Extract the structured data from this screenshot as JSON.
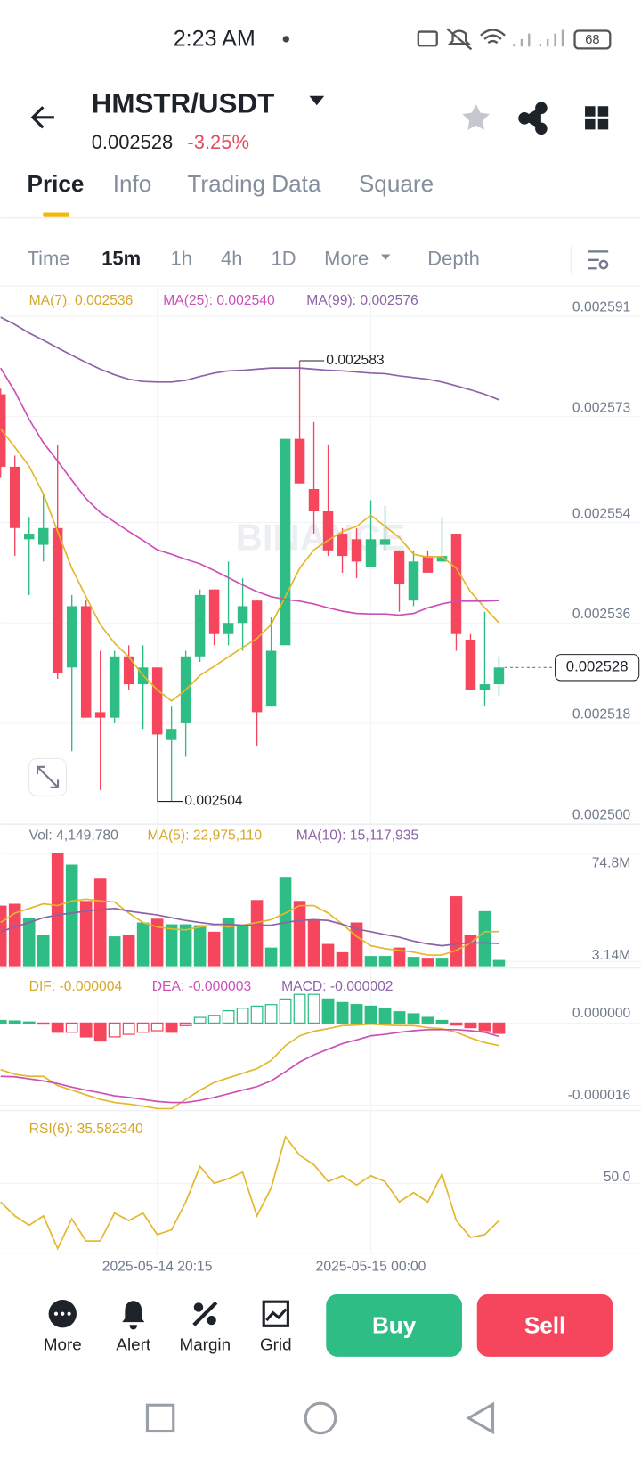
{
  "status_bar": {
    "time": "2:23 AM",
    "battery": "68"
  },
  "header": {
    "pair": "HMSTR/USDT",
    "price": "0.002528",
    "change": "-3.25%"
  },
  "tabs": [
    "Price",
    "Info",
    "Trading Data",
    "Square"
  ],
  "intervals": [
    "Time",
    "15m",
    "1h",
    "4h",
    "1D",
    "More",
    "Depth"
  ],
  "chart": {
    "type": "candlestick",
    "watermark": "BINANCE",
    "up_color": "#2ebd85",
    "down_color": "#f6465d",
    "grid": true,
    "xticks": [
      {
        "value": 11,
        "label": "2025-05-14 20:15"
      },
      {
        "value": 26,
        "label": "2025-05-15 00:00"
      }
    ],
    "price": {
      "legend": [
        "MA(7): 0.002536",
        "MA(25): 0.002540",
        "MA(99): 0.002576"
      ],
      "ylim": [
        0.0025,
        0.0025959
      ],
      "yticks": [
        0.002591,
        0.002573,
        0.002554,
        0.002536,
        0.002518,
        {
          "value": 0.0025,
          "label": "0.002500"
        }
      ],
      "candles": [
        [
          0.002577,
          0.002578,
          0.002562,
          0.002564
        ],
        [
          0.002564,
          0.002566,
          0.002548,
          0.002553
        ],
        [
          0.002551,
          0.002555,
          0.002541,
          0.002552
        ],
        [
          0.00255,
          0.002559,
          0.002547,
          0.002553
        ],
        [
          0.002553,
          0.002568,
          0.002526,
          0.002527
        ],
        [
          0.002528,
          0.002541,
          0.002513,
          0.002539
        ],
        [
          0.002539,
          0.00254,
          0.002519,
          0.002519
        ],
        [
          0.00252,
          0.002531,
          0.002506,
          0.002519
        ],
        [
          0.002519,
          0.002531,
          0.002518,
          0.00253
        ],
        [
          0.00253,
          0.002532,
          0.002524,
          0.002525
        ],
        [
          0.002525,
          0.002532,
          0.002517,
          0.002528
        ],
        [
          0.002528,
          0.002528,
          0.002504,
          0.002516
        ],
        [
          0.002515,
          0.002521,
          0.002504,
          0.002517
        ],
        [
          0.002518,
          0.002531,
          0.002512,
          0.00253
        ],
        [
          0.00253,
          0.002542,
          0.002529,
          0.002541
        ],
        [
          0.002542,
          0.002542,
          0.002532,
          0.002534
        ],
        [
          0.002534,
          0.002547,
          0.002532,
          0.002536
        ],
        [
          0.002536,
          0.002544,
          0.002531,
          0.002539
        ],
        [
          0.00254,
          0.00254,
          0.002514,
          0.00252
        ],
        [
          0.002521,
          0.002537,
          0.002521,
          0.002531
        ],
        [
          0.002532,
          0.002569,
          0.002532,
          0.002569
        ],
        [
          0.002569,
          0.002583,
          0.002561,
          0.002561
        ],
        [
          0.00256,
          0.002572,
          0.002552,
          0.002556
        ],
        [
          0.002556,
          0.002568,
          0.002548,
          0.002549
        ],
        [
          0.002552,
          0.002553,
          0.002545,
          0.002548
        ],
        [
          0.002551,
          0.002553,
          0.002544,
          0.002547
        ],
        [
          0.002546,
          0.002558,
          0.002546,
          0.002551
        ],
        [
          0.00255,
          0.002557,
          0.002549,
          0.002551
        ],
        [
          0.002549,
          0.002549,
          0.002538,
          0.002543
        ],
        [
          0.00254,
          0.002549,
          0.002539,
          0.002547
        ],
        [
          0.002548,
          0.002549,
          0.002545,
          0.002545
        ],
        [
          0.002547,
          0.002555,
          0.002547,
          0.002548
        ],
        [
          0.002552,
          0.002552,
          0.002531,
          0.002534
        ],
        [
          0.002533,
          0.002534,
          0.002524,
          0.002524
        ],
        [
          0.002524,
          0.002538,
          0.002521,
          0.002525
        ],
        [
          0.002525,
          0.00253,
          0.002523,
          0.002528
        ]
      ],
      "series": [
        {
          "color": "#e3b72b",
          "values": [
            0.0025708,
            0.0025675,
            0.0025641,
            0.0025591,
            0.0025524,
            0.0025458,
            0.0025407,
            0.0025357,
            0.0025324,
            0.0025299,
            0.0025266,
            0.002524,
            0.002522,
            0.002524,
            0.0025266,
            0.0025282,
            0.0025299,
            0.0025316,
            0.0025332,
            0.0025357,
            0.0025407,
            0.0025458,
            0.0025491,
            0.0025508,
            0.0025524,
            0.0025533,
            0.0025553,
            0.0025533,
            0.0025513,
            0.0025483,
            0.0025478,
            0.0025479,
            0.0025458,
            0.0025416,
            0.0025387,
            0.002536
          ]
        },
        {
          "color": "#cc4fb8",
          "values": [
            0.0025817,
            0.0025775,
            0.0025725,
            0.0025683,
            0.002565,
            0.0025616,
            0.0025583,
            0.0025558,
            0.0025541,
            0.0025524,
            0.0025508,
            0.0025491,
            0.0025483,
            0.0025474,
            0.0025466,
            0.0025454,
            0.0025441,
            0.0025428,
            0.0025416,
            0.0025407,
            0.0025402,
            0.0025399,
            0.0025394,
            0.0025387,
            0.0025381,
            0.0025377,
            0.0025376,
            0.0025376,
            0.0025374,
            0.0025377,
            0.0025387,
            0.0025394,
            0.0025399,
            0.0025399,
            0.0025399,
            0.00254
          ]
        },
        {
          "color": "#8c62a8",
          "values": [
            0.0025908,
            0.0025895,
            0.002588,
            0.0025867,
            0.0025853,
            0.002584,
            0.0025827,
            0.0025815,
            0.0025805,
            0.0025797,
            0.0025793,
            0.0025792,
            0.0025792,
            0.0025795,
            0.0025802,
            0.0025808,
            0.0025812,
            0.0025813,
            0.0025815,
            0.0025817,
            0.0025817,
            0.0025817,
            0.0025815,
            0.0025813,
            0.0025812,
            0.002581,
            0.0025808,
            0.0025807,
            0.0025803,
            0.00258,
            0.0025797,
            0.0025792,
            0.0025785,
            0.0025778,
            0.002577,
            0.002576
          ]
        }
      ]
    },
    "volume": {
      "legend": [
        "Vol: 4,149,780",
        "MA(5): 22,975,110",
        "MA(10): 15,117,935"
      ],
      "ylim": [
        0,
        90800000
      ],
      "yticks": [
        {
          "value": 74800000,
          "label": "74.8M"
        },
        {
          "value": 3140000,
          "label": "3.14M"
        }
      ],
      "values": [
        40200000,
        41400000,
        32100000,
        21000000,
        74800000,
        67400000,
        43300000,
        58100000,
        19800000,
        21000000,
        29000000,
        31500000,
        27800000,
        27800000,
        27200000,
        22900000,
        32100000,
        27200000,
        43900000,
        12400000,
        58700000,
        43300000,
        30900000,
        14800000,
        9300000,
        29000000,
        6800000,
        6800000,
        12400000,
        6200000,
        5600000,
        5600000,
        46400000,
        21000000,
        36500000,
        4149780
      ],
      "series": [
        {
          "color": "#e3b72b",
          "values": [
            29000000,
            35200000,
            38300000,
            41400000,
            40200000,
            43300000,
            44500000,
            43300000,
            42600000,
            35200000,
            29000000,
            26000000,
            24700000,
            24100000,
            26000000,
            27200000,
            26000000,
            27200000,
            29000000,
            30900000,
            35200000,
            40200000,
            40200000,
            35200000,
            27800000,
            19800000,
            13600000,
            11700000,
            10500000,
            9300000,
            7400000,
            7400000,
            10500000,
            15500000,
            22900000,
            22975110
          ]
        },
        {
          "color": "#8c62a8",
          "values": [
            22900000,
            26000000,
            29000000,
            32100000,
            34000000,
            35200000,
            36500000,
            37700000,
            38300000,
            36500000,
            35200000,
            34000000,
            32100000,
            30300000,
            29000000,
            27800000,
            27800000,
            27200000,
            27200000,
            27200000,
            29000000,
            30300000,
            30900000,
            30300000,
            27800000,
            24700000,
            22900000,
            21000000,
            19200000,
            16700000,
            14800000,
            13600000,
            14800000,
            15500000,
            15500000,
            15117935
          ]
        }
      ]
    },
    "macd": {
      "legend": [
        "DIF: -0.000004",
        "DEA: -0.000003",
        "MACD: -0.000002"
      ],
      "ylim": [
        -1.71e-05,
        1e-05
      ],
      "yticks": [
        {
          "value": 0,
          "label": "0.000000"
        },
        -1.6e-05
      ],
      "values": [
        5e-07,
        4e-07,
        2e-07,
        -2e-07,
        -1.8e-06,
        -1.8e-06,
        -2.7e-06,
        -3.5e-06,
        -2.7e-06,
        -2.2e-06,
        -1.8e-06,
        -1.5e-06,
        -1.8e-06,
        -5e-07,
        1.1e-06,
        1.5e-06,
        2.4e-06,
        2.9e-06,
        3.3e-06,
        3.6e-06,
        4.7e-06,
        5.6e-06,
        5.6e-06,
        4.7e-06,
        4e-06,
        3.6e-06,
        3.3e-06,
        2.9e-06,
        2.2e-06,
        1.8e-06,
        1.1e-06,
        5e-07,
        -4e-07,
        -9e-07,
        -1.5e-06,
        -2e-06
      ],
      "series": [
        {
          "color": "#e3b72b",
          "values": [
            -9.1e-06,
            -1e-05,
            -1.04e-05,
            -1.04e-05,
            -1.22e-05,
            -1.31e-05,
            -1.4e-05,
            -1.49e-05,
            -1.55e-05,
            -1.58e-05,
            -1.62e-05,
            -1.67e-05,
            -1.67e-05,
            -1.49e-05,
            -1.31e-05,
            -1.16e-05,
            -1.07e-05,
            -9.8e-06,
            -8.9e-06,
            -7.3e-06,
            -4.4e-06,
            -2.5e-06,
            -1.6e-06,
            -1.1e-06,
            -5e-07,
            -4e-07,
            -2e-07,
            -4e-07,
            -5e-07,
            -5e-07,
            -9e-07,
            -1.1e-06,
            -1.8e-06,
            -2.9e-06,
            -3.8e-06,
            -4.4e-06
          ]
        },
        {
          "color": "#cc4fb8",
          "values": [
            -1.04e-05,
            -1.05e-05,
            -1.09e-05,
            -1.13e-05,
            -1.18e-05,
            -1.25e-05,
            -1.31e-05,
            -1.36e-05,
            -1.42e-05,
            -1.45e-05,
            -1.49e-05,
            -1.53e-05,
            -1.55e-05,
            -1.55e-05,
            -1.51e-05,
            -1.45e-05,
            -1.38e-05,
            -1.31e-05,
            -1.24e-05,
            -1.13e-05,
            -9.5e-06,
            -7.6e-06,
            -6.2e-06,
            -5.1e-06,
            -4e-06,
            -3.3e-06,
            -2.5e-06,
            -2.2e-06,
            -1.8e-06,
            -1.5e-06,
            -1.3e-06,
            -1.3e-06,
            -1.3e-06,
            -1.5e-06,
            -1.8e-06,
            -2.6e-06
          ]
        }
      ]
    },
    "rsi": {
      "legend": [
        "RSI(6): 35.582340"
      ],
      "ylim": [
        23,
        77
      ],
      "yticks": [
        {
          "value": 50,
          "label": "50.0"
        }
      ],
      "series": [
        {
          "color": "#e3b72b",
          "values": [
            42.8,
            37.4,
            33.8,
            37.4,
            24.8,
            36.3,
            27.7,
            27.7,
            38.5,
            35.6,
            38.5,
            30.2,
            32,
            42.8,
            56.5,
            50,
            51.8,
            54.3,
            37.4,
            48.2,
            68,
            60.8,
            57.2,
            50.7,
            52.9,
            49.3,
            52.9,
            50.7,
            42.8,
            46.4,
            42.8,
            53.6,
            35.6,
            29.1,
            30.2,
            35.58234
          ]
        }
      ]
    }
  },
  "actions": [
    "More",
    "Alert",
    "Margin",
    "Grid"
  ],
  "buttons": [
    "Buy",
    "Sell"
  ]
}
